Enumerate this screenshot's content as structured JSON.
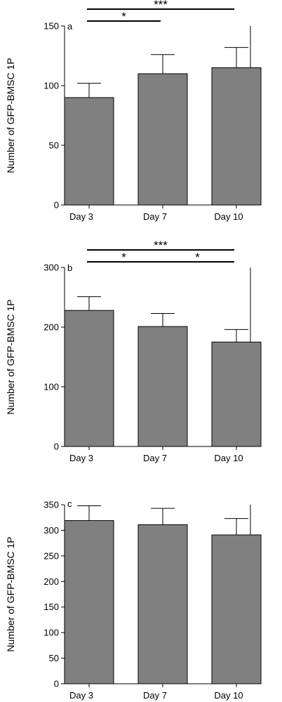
{
  "chart_data": [
    {
      "type": "bar",
      "panel_label": "a",
      "ylabel": "Number of GFP-BMSC 1P",
      "xlabel": "",
      "categories": [
        "Day 3",
        "Day 7",
        "Day 10"
      ],
      "values": [
        90,
        110,
        115
      ],
      "error": [
        12,
        16,
        17
      ],
      "ylim": [
        0,
        150
      ],
      "yticks": [
        0,
        50,
        100,
        150
      ],
      "bar_color": "#808080",
      "significance": [
        {
          "from": 0,
          "to": 1,
          "label": "*"
        },
        {
          "from": 0,
          "to": 2,
          "label": "***"
        }
      ]
    },
    {
      "type": "bar",
      "panel_label": "b",
      "ylabel": "Number of GFP-BMSC 1P",
      "xlabel": "",
      "categories": [
        "Day 3",
        "Day 7",
        "Day 10"
      ],
      "values": [
        228,
        201,
        175
      ],
      "error": [
        23,
        22,
        21
      ],
      "ylim": [
        0,
        300
      ],
      "yticks": [
        0,
        100,
        200,
        300
      ],
      "bar_color": "#808080",
      "significance": [
        {
          "from": 0,
          "to": 1,
          "label": "*"
        },
        {
          "from": 1,
          "to": 2,
          "label": "*"
        },
        {
          "from": 0,
          "to": 2,
          "label": "***"
        }
      ]
    },
    {
      "type": "bar",
      "panel_label": "c",
      "ylabel": "Number of GFP-BMSC 1P",
      "xlabel": "",
      "categories": [
        "Day 3",
        "Day 7",
        "Day 10"
      ],
      "values": [
        319,
        311,
        291
      ],
      "error": [
        29,
        32,
        32
      ],
      "ylim": [
        0,
        350
      ],
      "yticks": [
        0,
        50,
        100,
        150,
        200,
        250,
        300,
        350
      ],
      "bar_color": "#808080",
      "significance": []
    }
  ]
}
